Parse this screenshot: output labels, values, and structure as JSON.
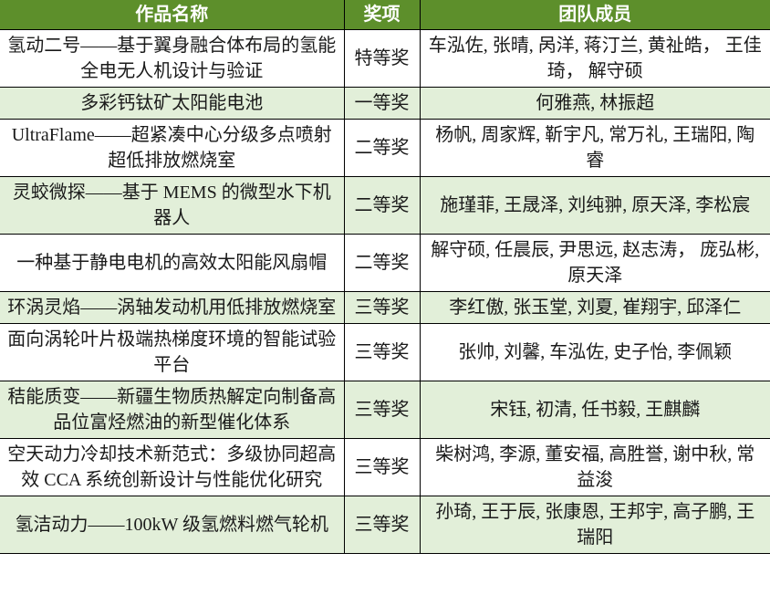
{
  "colors": {
    "header_bg": "#5D8F2B",
    "header_text": "#FFFFFF",
    "row_alt_bg": "#E2EFD9",
    "row_bg": "#FFFFFF",
    "border": "#000000",
    "body_text": "#1A1A1A"
  },
  "table": {
    "headers": {
      "title": "作品名称",
      "award": "奖项",
      "team": "团队成员"
    },
    "rows": [
      {
        "title": "氢动二号——基于翼身融合体布局的氢能全电无人机设计与验证",
        "award": "特等奖",
        "members": "车泓佐, 张晴, 呙洋, 蒋汀兰, 黄祉皓， 王佳琦， 解守硕"
      },
      {
        "title": "多彩钙钛矿太阳能电池",
        "award": "一等奖",
        "members": "何雅燕, 林振超"
      },
      {
        "title": "UltraFlame——超紧凑中心分级多点喷射超低排放燃烧室",
        "award": "二等奖",
        "members": "杨帆, 周家辉, 靳宇凡, 常万礼, 王瑞阳, 陶睿"
      },
      {
        "title": "灵蛟微探——基于 MEMS 的微型水下机器人",
        "award": "二等奖",
        "members": "施瑾菲, 王晟泽, 刘纯翀, 原天泽, 李松宸"
      },
      {
        "title": "一种基于静电电机的高效太阳能风扇帽",
        "award": "二等奖",
        "members": "解守硕, 任晨辰, 尹思远, 赵志涛， 庞弘彬, 原天泽"
      },
      {
        "title": "环涡灵焰——涡轴发动机用低排放燃烧室",
        "award": "三等奖",
        "members": "李红傲, 张玉堂, 刘夏, 崔翔宇, 邱泽仁"
      },
      {
        "title": "面向涡轮叶片极端热梯度环境的智能试验平台",
        "award": "三等奖",
        "members": "张帅, 刘馨, 车泓佐, 史子怡, 李佩颖"
      },
      {
        "title": "秸能质变——新疆生物质热解定向制备高品位富烃燃油的新型催化体系",
        "award": "三等奖",
        "members": "宋钰, 初清, 任书毅, 王麒麟"
      },
      {
        "title": "空天动力冷却技术新范式：多级协同超高效 CCA 系统创新设计与性能优化研究",
        "award": "三等奖",
        "members": "柴树鸿, 李源, 董安福, 高胜誉, 谢中秋, 常益浚"
      },
      {
        "title": "氢洁动力——100kW 级氢燃料燃气轮机",
        "award": "三等奖",
        "members": "孙琦, 王于辰, 张康恩, 王邦宇, 高子鹏, 王瑞阳"
      }
    ]
  }
}
